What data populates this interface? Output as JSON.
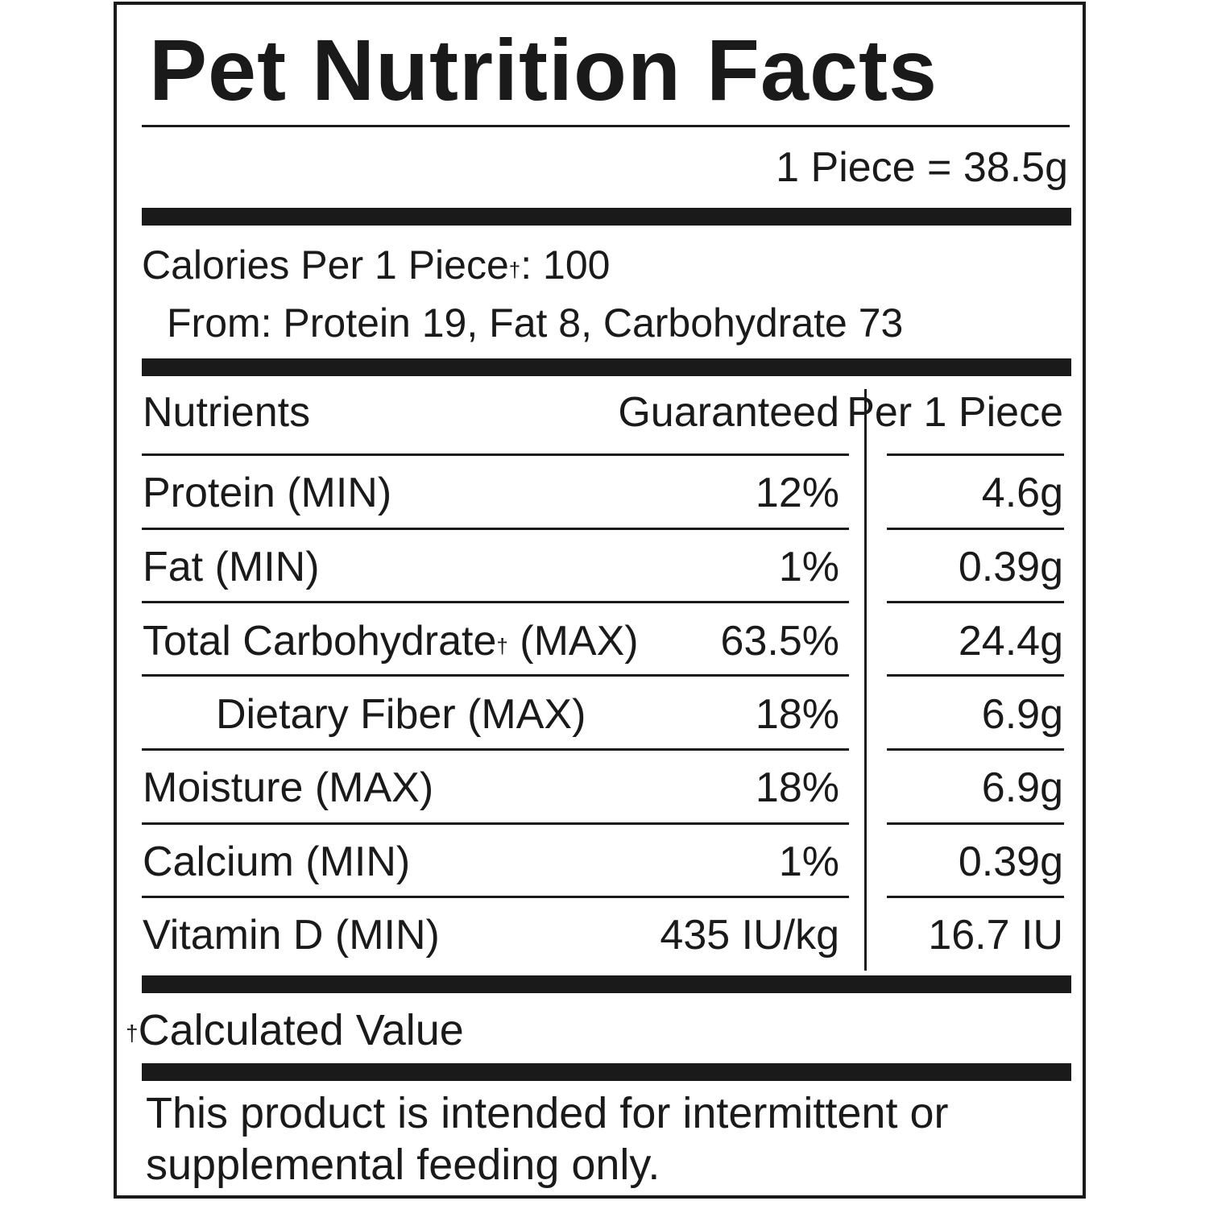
{
  "title": "Pet Nutrition Facts",
  "serving": "1 Piece = 38.5g",
  "calories": {
    "line1_prefix": "Calories Per 1 Piece",
    "line1_dagger": "†",
    "line1_suffix": ": 100",
    "line2": "From: Protein 19, Fat 8, Carbohydrate 73"
  },
  "table": {
    "headers": {
      "nutrients": "Nutrients",
      "guaranteed": "Guaranteed",
      "per_piece": "Per 1 Piece"
    },
    "rows": [
      {
        "name": "Protein (MIN)",
        "guaranteed": "12%",
        "per_piece": "4.6g"
      },
      {
        "name": "Fat (MIN)",
        "guaranteed": "1%",
        "per_piece": "0.39g"
      },
      {
        "name_prefix": "Total Carbohydrate",
        "dagger": "†",
        "name_suffix": " (MAX)",
        "guaranteed": "63.5%",
        "per_piece": "24.4g"
      },
      {
        "name": "Dietary Fiber (MAX)",
        "guaranteed": "18%",
        "per_piece": "6.9g"
      },
      {
        "name": "Moisture (MAX)",
        "guaranteed": "18%",
        "per_piece": "6.9g"
      },
      {
        "name": "Calcium (MIN)",
        "guaranteed": "1%",
        "per_piece": "0.39g"
      },
      {
        "name": "Vitamin D (MIN)",
        "guaranteed": "435 IU/kg",
        "per_piece": "16.7 IU"
      }
    ]
  },
  "footnote": {
    "dagger": "†",
    "text": "Calculated Value"
  },
  "disclaimer": "This product is intended for intermittent or supplemental feeding only."
}
